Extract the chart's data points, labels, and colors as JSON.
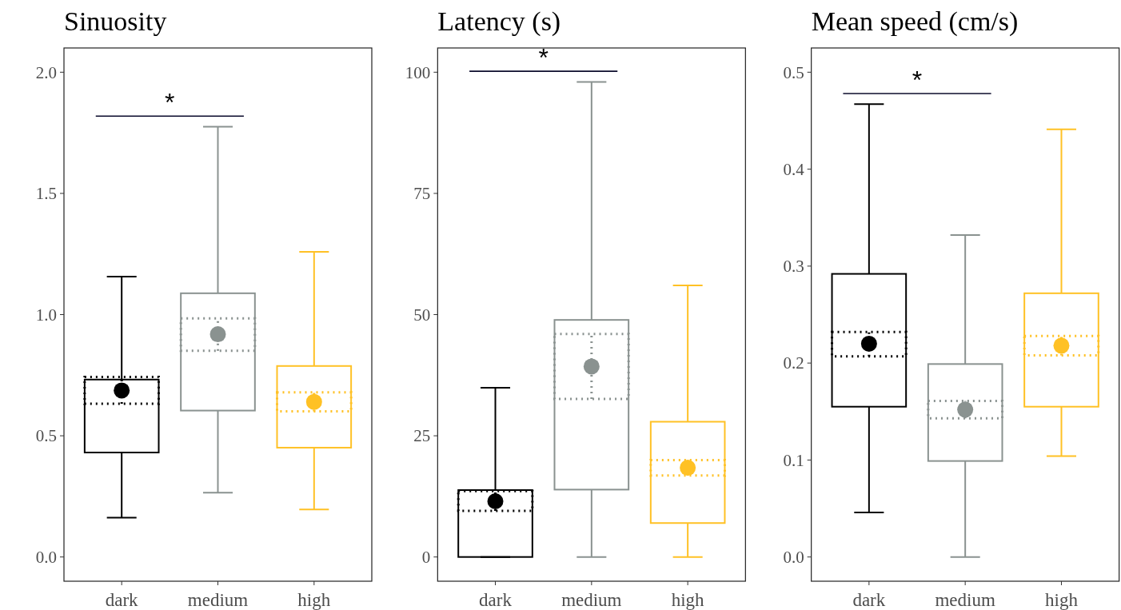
{
  "chart_data": [
    {
      "type": "box",
      "title": "Sinuosity",
      "categories": [
        "dark",
        "medium",
        "high"
      ],
      "colors": [
        "#000000",
        "#8a9290",
        "#ffc125"
      ],
      "boxes": [
        {
          "low": 0.162,
          "q1": 0.431,
          "q3": 0.732,
          "high": 1.157
        },
        {
          "low": 0.265,
          "q1": 0.604,
          "q3": 1.088,
          "high": 1.775
        },
        {
          "low": 0.196,
          "q1": 0.451,
          "q3": 0.788,
          "high": 1.259
        }
      ],
      "series": [
        {
          "type": "box",
          "colors": [
            "#000000",
            "#8a9290",
            "#ffc125"
          ],
          "line_style": "dotted",
          "boxes": [
            {
              "low": 0.632,
              "q1": 0.632,
              "q3": 0.743,
              "high": 0.743
            },
            {
              "low": 0.851,
              "q1": 0.851,
              "q3": 0.984,
              "high": 0.984
            },
            {
              "low": 0.601,
              "q1": 0.601,
              "q3": 0.679,
              "high": 0.679
            }
          ]
        },
        {
          "type": "scatter",
          "x": [
            "dark",
            "medium",
            "high"
          ],
          "values": [
            0.687,
            0.919,
            0.64
          ],
          "errors": [
            [
              0.632,
              0.743
            ],
            [
              0.851,
              0.984
            ],
            [
              0.601,
              0.679
            ]
          ],
          "colors": [
            "#000000",
            "#8a9290",
            "#ffc125"
          ],
          "line_style": "dotted"
        }
      ],
      "marker": "circle",
      "annotations": [
        "*"
      ],
      "ylim": [
        -0.1,
        2.1
      ],
      "yticks": [
        {
          "value": 0,
          "label": "0.0"
        },
        {
          "value": 0.5,
          "label": "0.5"
        },
        {
          "value": 1,
          "label": "1.0"
        },
        {
          "value": 1.5,
          "label": "1.5"
        },
        {
          "value": 2,
          "label": "2.0"
        }
      ]
    },
    {
      "type": "box",
      "title": "Latency (s)",
      "categories": [
        "dark",
        "medium",
        "high"
      ],
      "colors": [
        "#000000",
        "#8a9290",
        "#ffc125"
      ],
      "boxes": [
        {
          "low": 0,
          "q1": 0,
          "q3": 13.8,
          "high": 34.9
        },
        {
          "low": 0,
          "q1": 13.9,
          "q3": 48.9,
          "high": 98
        },
        {
          "low": 0,
          "q1": 7,
          "q3": 27.9,
          "high": 56
        }
      ],
      "series": [
        {
          "type": "box",
          "colors": [
            "#000000",
            "#8a9290",
            "#ffc125"
          ],
          "line_style": "dotted",
          "boxes": [
            {
              "low": 9.5,
              "q1": 9.5,
              "q3": 13.6,
              "high": 13.6
            },
            {
              "low": 32.6,
              "q1": 32.6,
              "q3": 46,
              "high": 46
            },
            {
              "low": 16.8,
              "q1": 16.8,
              "q3": 20,
              "high": 20
            }
          ]
        },
        {
          "type": "scatter",
          "x": [
            "dark",
            "medium",
            "high"
          ],
          "values": [
            11.5,
            39.3,
            18.4
          ],
          "errors": [
            [
              9.5,
              13.6
            ],
            [
              32.6,
              46
            ],
            [
              16.8,
              20
            ]
          ],
          "colors": [
            "#000000",
            "#8a9290",
            "#ffc125"
          ],
          "line_style": "dotted"
        }
      ],
      "marker": "circle",
      "annotations": [
        "*"
      ],
      "ylim": [
        -5,
        105
      ],
      "yticks": [
        0,
        25,
        50,
        75,
        100
      ]
    },
    {
      "type": "box",
      "title": "Mean speed (cm/s)",
      "categories": [
        "dark",
        "medium",
        "high"
      ],
      "colors": [
        "#000000",
        "#8a9290",
        "#ffc125"
      ],
      "boxes": [
        {
          "low": 0.046,
          "q1": 0.155,
          "q3": 0.292,
          "high": 0.467
        },
        {
          "low": 0,
          "q1": 0.099,
          "q3": 0.199,
          "high": 0.332
        },
        {
          "low": 0.104,
          "q1": 0.155,
          "q3": 0.272,
          "high": 0.441
        }
      ],
      "series": [
        {
          "type": "box",
          "colors": [
            "#000000",
            "#8a9290",
            "#ffc125"
          ],
          "line_style": "dotted",
          "boxes": [
            {
              "low": 0.207,
              "q1": 0.207,
              "q3": 0.232,
              "high": 0.232
            },
            {
              "low": 0.143,
              "q1": 0.143,
              "q3": 0.161,
              "high": 0.161
            },
            {
              "low": 0.208,
              "q1": 0.208,
              "q3": 0.228,
              "high": 0.228
            }
          ]
        },
        {
          "type": "scatter",
          "x": [
            "dark",
            "medium",
            "high"
          ],
          "values": [
            0.22,
            0.152,
            0.218
          ],
          "errors": [
            [
              0.207,
              0.232
            ],
            [
              0.143,
              0.161
            ],
            [
              0.208,
              0.228
            ]
          ],
          "colors": [
            "#000000",
            "#8a9290",
            "#ffc125"
          ],
          "line_style": "dotted"
        }
      ],
      "marker": "circle",
      "annotations": [
        "*"
      ],
      "ylim": [
        -0.025,
        0.525
      ],
      "yticks": [
        {
          "value": 0,
          "label": "0.0"
        },
        {
          "value": 0.1,
          "label": "0.1"
        },
        {
          "value": 0.2,
          "label": "0.2"
        },
        {
          "value": 0.3,
          "label": "0.3"
        },
        {
          "value": 0.4,
          "label": "0.4"
        },
        {
          "value": 0.5,
          "label": "0.5"
        }
      ]
    }
  ]
}
